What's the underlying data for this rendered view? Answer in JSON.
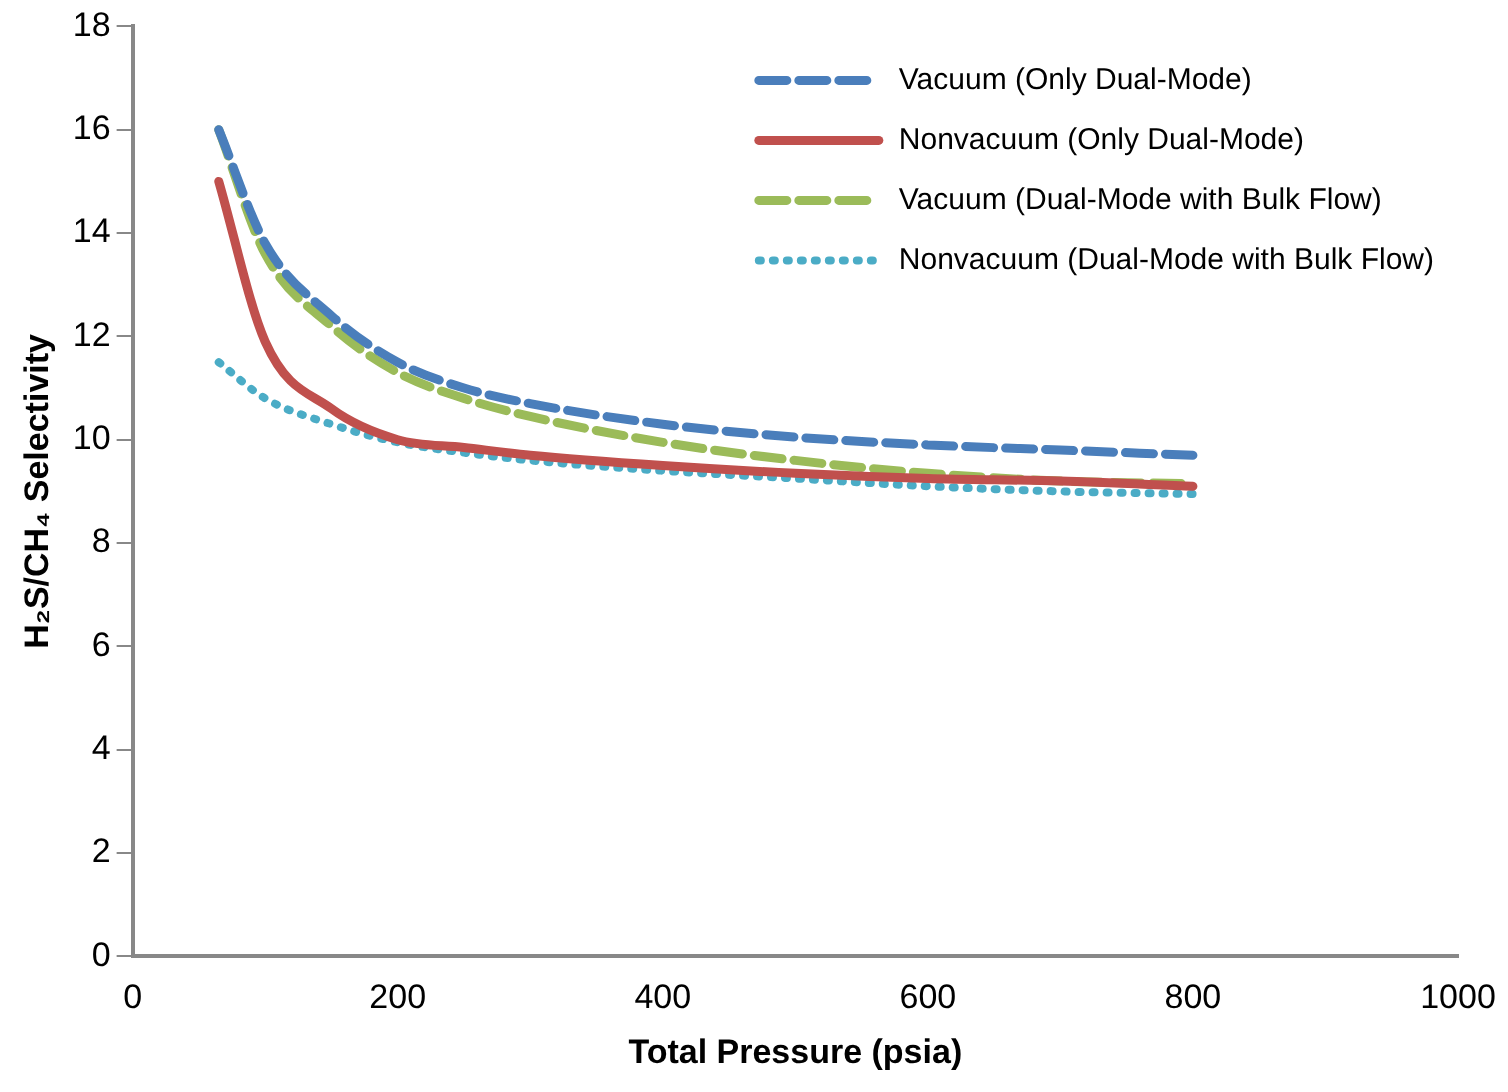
{
  "chart_data": {
    "type": "line",
    "xlabel": "Total Pressure (psia)",
    "ylabel": "H₂S/CH₄ Selectivity",
    "x": [
      65,
      100,
      150,
      200,
      250,
      300,
      400,
      500,
      600,
      700,
      800
    ],
    "series": [
      {
        "name": "Vacuum (Only Dual-Mode)",
        "color": "#4a7ebb",
        "line_style": "dashed",
        "values": [
          16,
          13.8,
          12.4,
          11.5,
          11.0,
          10.7,
          10.3,
          10.05,
          9.9,
          9.8,
          9.7
        ]
      },
      {
        "name": "Nonvacuum (Only Dual-Mode)",
        "color": "#c0504d",
        "line_style": "solid",
        "values": [
          15,
          11.9,
          10.6,
          10.0,
          9.85,
          9.7,
          9.5,
          9.35,
          9.25,
          9.2,
          9.1
        ]
      },
      {
        "name": "Vacuum (Dual-Mode with Bulk Flow)",
        "color": "#9bbb59",
        "line_style": "dashed",
        "values": [
          16,
          13.6,
          12.2,
          11.3,
          10.8,
          10.45,
          9.95,
          9.6,
          9.35,
          9.2,
          9.15
        ]
      },
      {
        "name": "Nonvacuum (Dual-Mode with Bulk Flow)",
        "color": "#4bacc6",
        "line_style": "dotted",
        "values": [
          11.5,
          10.8,
          10.3,
          9.95,
          9.75,
          9.6,
          9.4,
          9.25,
          9.1,
          9.0,
          8.95
        ]
      }
    ],
    "xlim": [
      0,
      1000
    ],
    "xticks": [
      0,
      200,
      400,
      600,
      800,
      1000
    ],
    "ylim": [
      0,
      18
    ],
    "yticks": [
      0,
      2,
      4,
      6,
      8,
      10,
      12,
      14,
      16,
      18
    ],
    "grid": false,
    "legend": "top right",
    "marker": "none"
  }
}
